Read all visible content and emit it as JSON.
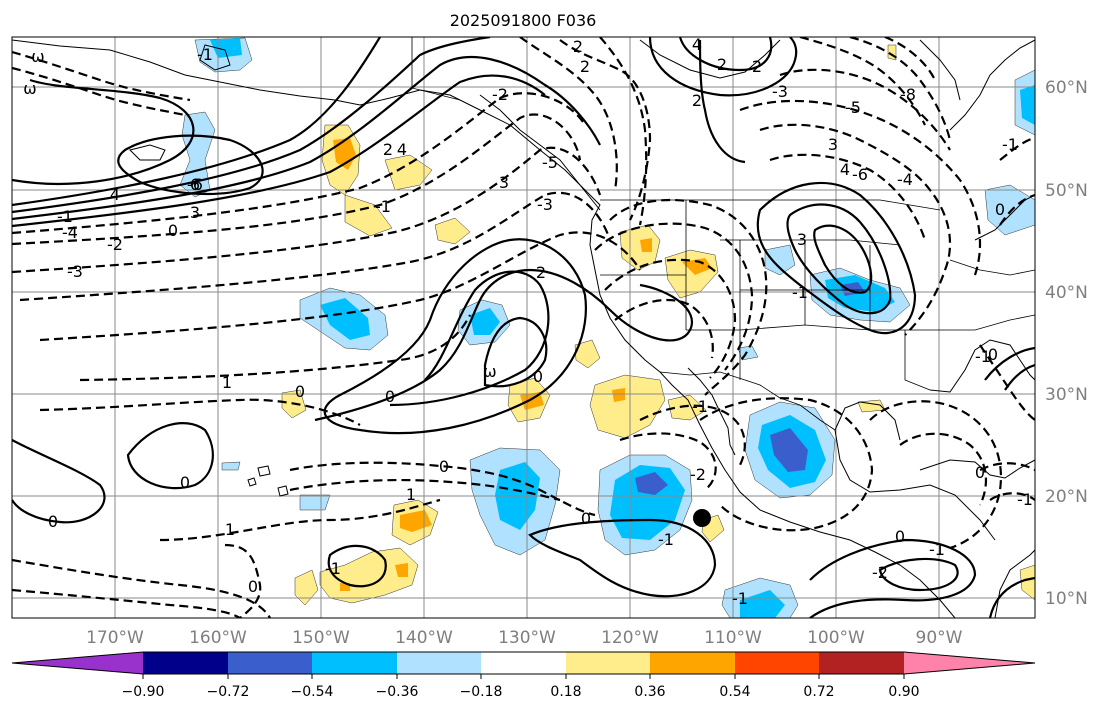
{
  "title": "2025091800 F036",
  "lon_labels": [
    "170°W",
    "160°W",
    "150°W",
    "140°W",
    "130°W",
    "120°W",
    "110°W",
    "100°W",
    "90°W"
  ],
  "lat_labels": [
    "60°N",
    "50°N",
    "40°N",
    "30°N",
    "20°N",
    "10°N"
  ],
  "colorbar": {
    "ticks": [
      "−0.90",
      "−0.72",
      "−0.54",
      "−0.36",
      "−0.18",
      "0.18",
      "0.36",
      "0.54",
      "0.72",
      "0.90"
    ],
    "colors": [
      "#9932cc",
      "#00008b",
      "#3a5fcd",
      "#00bfff",
      "#b0e2ff",
      "#ffffff",
      "#ffec8b",
      "#ffa500",
      "#ff4500",
      "#b22222",
      "#ff82ab"
    ]
  },
  "contour_labels": [
    "2",
    "2",
    "4",
    "2",
    "4",
    "6",
    "-1",
    "ω",
    "ω",
    "-2",
    "2",
    "4",
    "-6",
    "3",
    "0",
    "-1",
    "-2",
    "-3",
    "-4",
    "-5",
    "3",
    "-1",
    "2",
    "2",
    "1",
    "3",
    "-2",
    "-3",
    "0",
    "1",
    "-1",
    "0",
    "ω",
    "0",
    "-1",
    "0",
    "-2",
    "-1",
    "0",
    "-1",
    "0",
    "0",
    "-1",
    "0",
    "-1",
    "0",
    "1",
    "-1",
    "0",
    "-1",
    "0",
    "-1",
    "0",
    "2",
    "3",
    "4",
    "-3",
    "-4",
    "-5",
    "-6",
    "-8"
  ],
  "marker": "storm center dot"
}
